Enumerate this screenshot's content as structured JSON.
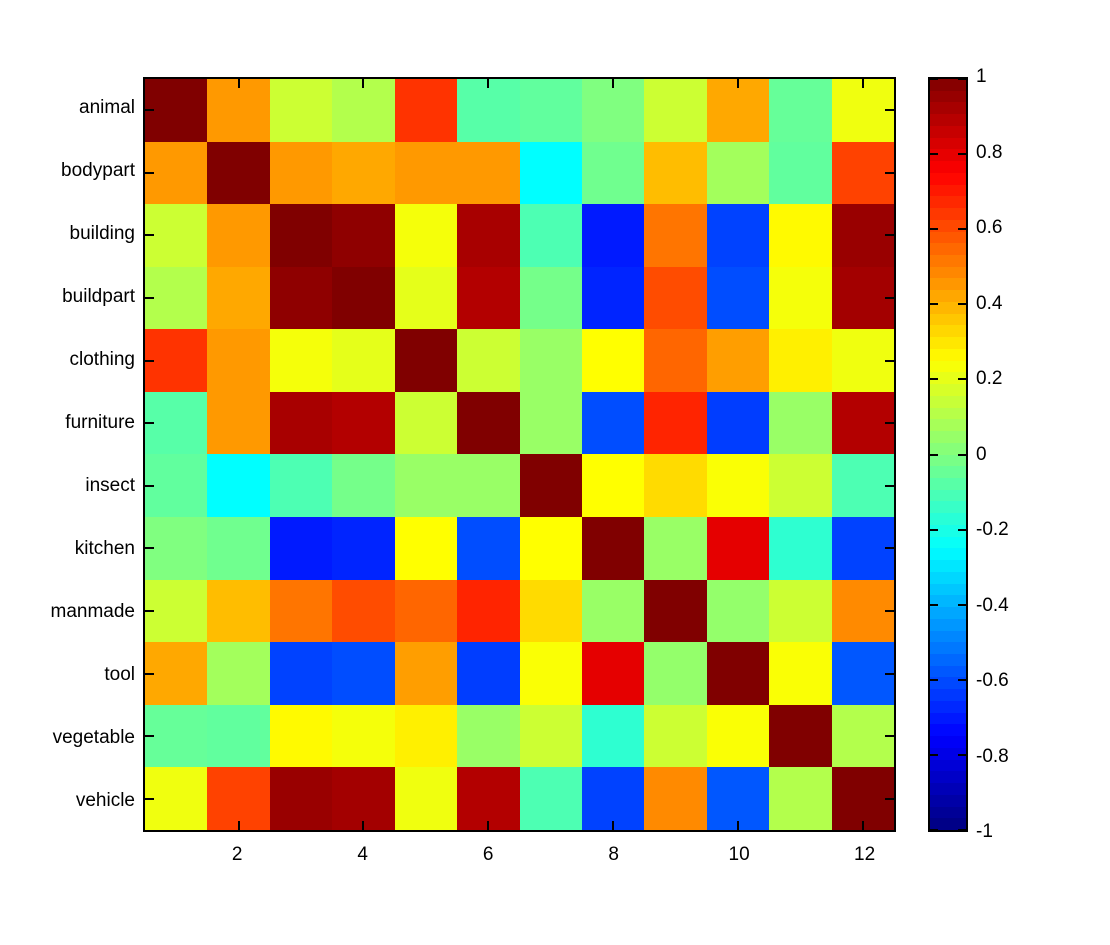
{
  "chart_data": {
    "type": "heatmap",
    "title": "",
    "colormap": "jet",
    "categories": [
      "animal",
      "bodypart",
      "building",
      "buildpart",
      "clothing",
      "furniture",
      "insect",
      "kitchen",
      "manmade",
      "tool",
      "vegetable",
      "vehicle"
    ],
    "x_tick_labels": [
      "2",
      "4",
      "6",
      "8",
      "10",
      "12"
    ],
    "x_tick_positions": [
      2,
      4,
      6,
      8,
      10,
      12
    ],
    "value_range": [
      -1,
      1
    ],
    "grid": false,
    "legend": "colorbar-right",
    "colorbar": {
      "position": "right",
      "tick_labels": [
        "1",
        "0.8",
        "0.6",
        "0.4",
        "0.2",
        "0",
        "-0.2",
        "-0.4",
        "-0.6",
        "-0.8",
        "-1"
      ],
      "tick_values": [
        1,
        0.8,
        0.6,
        0.4,
        0.2,
        0,
        -0.2,
        -0.4,
        -0.6,
        -0.8,
        -1
      ]
    },
    "matrix": [
      [
        1.0,
        0.45,
        0.15,
        0.1,
        0.65,
        -0.08,
        -0.06,
        0.0,
        0.15,
        0.42,
        -0.05,
        0.22
      ],
      [
        0.45,
        1.0,
        0.45,
        0.42,
        0.45,
        0.45,
        -0.25,
        -0.03,
        0.38,
        0.07,
        -0.06,
        0.62
      ],
      [
        0.15,
        0.45,
        1.0,
        0.97,
        0.23,
        0.92,
        -0.1,
        -0.7,
        0.52,
        -0.62,
        0.26,
        0.95
      ],
      [
        0.1,
        0.42,
        0.97,
        1.0,
        0.2,
        0.9,
        -0.02,
        -0.68,
        0.6,
        -0.6,
        0.23,
        0.93
      ],
      [
        0.65,
        0.45,
        0.23,
        0.2,
        1.0,
        0.15,
        0.05,
        0.25,
        0.55,
        0.44,
        0.28,
        0.22
      ],
      [
        -0.08,
        0.45,
        0.92,
        0.9,
        0.15,
        1.0,
        0.05,
        -0.6,
        0.68,
        -0.63,
        0.05,
        0.9
      ],
      [
        -0.06,
        -0.25,
        -0.1,
        -0.02,
        0.05,
        0.05,
        1.0,
        0.25,
        0.32,
        0.24,
        0.15,
        -0.1
      ],
      [
        0.0,
        -0.03,
        -0.7,
        -0.68,
        0.25,
        -0.6,
        0.25,
        1.0,
        0.05,
        0.8,
        -0.16,
        -0.62
      ],
      [
        0.15,
        0.38,
        0.52,
        0.6,
        0.55,
        0.68,
        0.32,
        0.05,
        1.0,
        0.04,
        0.15,
        0.48
      ],
      [
        0.42,
        0.07,
        -0.62,
        -0.6,
        0.44,
        -0.63,
        0.24,
        0.8,
        0.04,
        1.0,
        0.24,
        -0.58
      ],
      [
        -0.05,
        -0.06,
        0.26,
        0.23,
        0.28,
        0.05,
        0.15,
        -0.16,
        0.15,
        0.24,
        1.0,
        0.1
      ],
      [
        0.22,
        0.62,
        0.95,
        0.93,
        0.22,
        0.9,
        -0.1,
        -0.62,
        0.48,
        -0.58,
        0.1,
        1.0
      ]
    ]
  },
  "colors": {
    "background": "#ffffff",
    "axis": "#000000",
    "colormap_max": "#800000",
    "colormap_zero": "#80ff80",
    "colormap_min": "#000080"
  }
}
